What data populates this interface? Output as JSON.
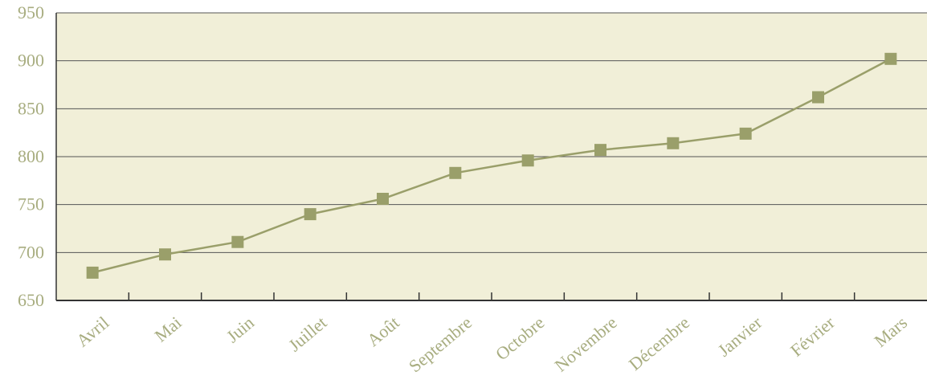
{
  "chart_data": {
    "type": "line",
    "categories": [
      "Avril",
      "Mai",
      "Juin",
      "Juillet",
      "Août",
      "Septembre",
      "Octobre",
      "Novembre",
      "Décembre",
      "Janvier",
      "Février",
      "Mars"
    ],
    "series": [
      {
        "values": [
          679,
          698,
          711,
          740,
          756,
          783,
          796,
          807,
          814,
          824,
          862,
          902
        ]
      }
    ],
    "yticks": [
      "650",
      "700",
      "750",
      "800",
      "850",
      "900",
      "950"
    ],
    "ylim": [
      650,
      950
    ],
    "grid": true,
    "marker": "square",
    "colors": {
      "plot_background": "#f1efd8",
      "line": "#9a9f6a",
      "marker": "#9a9f6a",
      "gridline": "#555555",
      "axis": "#333333",
      "label": "#a8ad80"
    }
  }
}
